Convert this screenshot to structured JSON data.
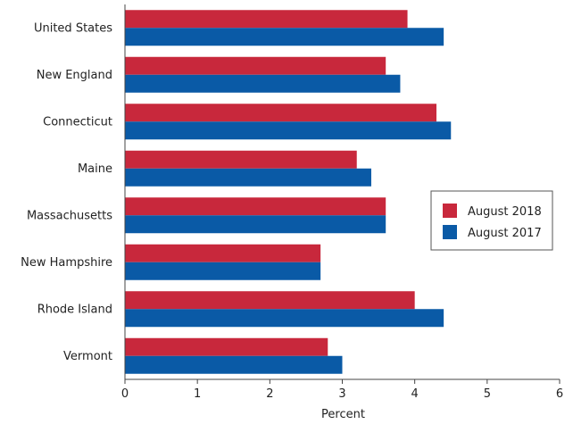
{
  "chart_data": {
    "type": "bar",
    "orientation": "horizontal",
    "categories": [
      "United States",
      "New England",
      "Connecticut",
      "Maine",
      "Massachusetts",
      "New Hampshire",
      "Rhode Island",
      "Vermont"
    ],
    "series": [
      {
        "name": "August 2018",
        "color": "#c8283c",
        "values": [
          3.9,
          3.6,
          4.3,
          3.2,
          3.6,
          2.7,
          4.0,
          2.8
        ]
      },
      {
        "name": "August 2017",
        "color": "#0a5aa6",
        "values": [
          4.4,
          3.8,
          4.5,
          3.4,
          3.6,
          2.7,
          4.4,
          3.0
        ]
      }
    ],
    "xlabel": "Percent",
    "xlim": [
      0,
      6
    ],
    "xticks": [
      "0",
      "1",
      "2",
      "3",
      "4",
      "5",
      "6"
    ],
    "grid": false,
    "legend_position": "right"
  }
}
